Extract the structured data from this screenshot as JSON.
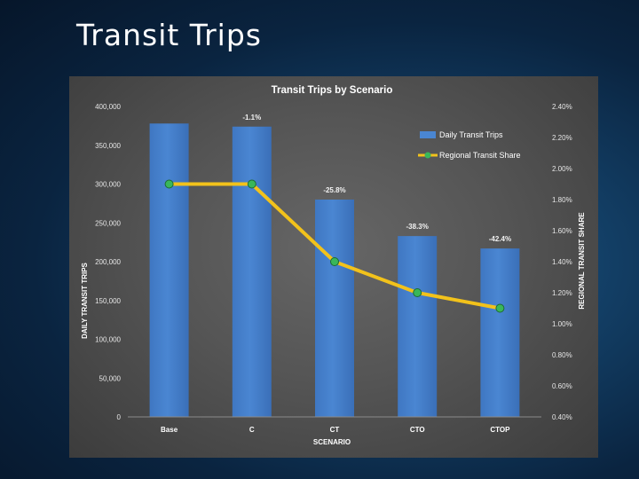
{
  "slide": {
    "title": "Transit Trips"
  },
  "colors": {
    "bar": "#4a86d2",
    "line": "#f2c21b",
    "marker": "#39b75a"
  },
  "chart_data": {
    "type": "bar",
    "title": "Transit Trips by Scenario",
    "xlabel": "SCENARIO",
    "ylabel": "DAILY TRANSIT TRIPS",
    "y2label": "REGIONAL TRANSIT SHARE",
    "categories": [
      "Base",
      "C",
      "CT",
      "CTO",
      "CTOP"
    ],
    "ylim": [
      0,
      400000
    ],
    "y2lim": [
      0.004,
      0.024
    ],
    "y_ticks": [
      "0",
      "50,000",
      "100,000",
      "150,000",
      "200,000",
      "250,000",
      "300,000",
      "350,000",
      "400,000"
    ],
    "y2_ticks": [
      "0.40%",
      "0.60%",
      "0.80%",
      "1.00%",
      "1.20%",
      "1.40%",
      "1.60%",
      "1.80%",
      "2.00%",
      "2.20%",
      "2.40%"
    ],
    "legend_position": "top-right",
    "series": [
      {
        "name": "Daily Transit Trips",
        "kind": "bar",
        "axis": "left",
        "values": [
          378000,
          374000,
          280000,
          233000,
          217000
        ],
        "labels": [
          "",
          "-1.1%",
          "-25.8%",
          "-38.3%",
          "-42.4%"
        ]
      },
      {
        "name": "Regional Transit Share",
        "kind": "line",
        "axis": "right",
        "values": [
          0.019,
          0.019,
          0.014,
          0.012,
          0.011
        ]
      }
    ]
  }
}
